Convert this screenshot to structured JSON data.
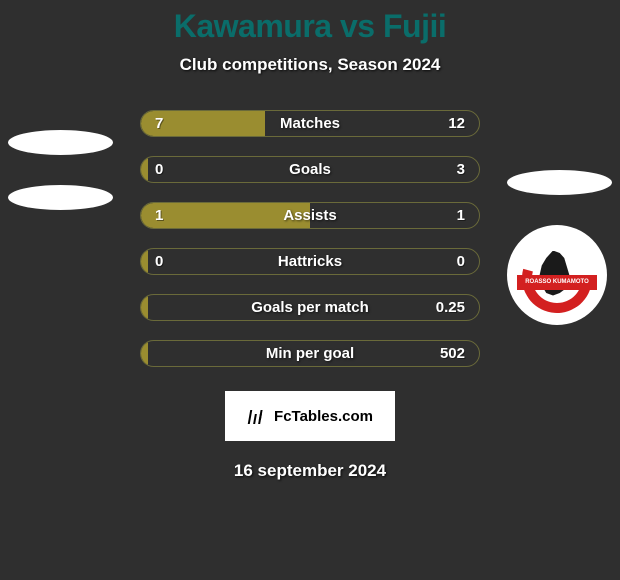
{
  "title": "Kawamura vs Fujii",
  "subtitle": "Club competitions, Season 2024",
  "date": "16 september 2024",
  "branding": "FcTables.com",
  "team_logo_text": "ROASSO KUMAMOTO",
  "colors": {
    "background": "#2f2f2f",
    "title_color": "#0a6d6a",
    "bar_fill": "#9a8d30",
    "bar_border": "#6a6a3a",
    "text": "#ffffff",
    "logo_red": "#d32020",
    "logo_black": "#1a1a1a"
  },
  "stats": [
    {
      "label": "Matches",
      "left_value": "7",
      "right_value": "12",
      "left_pct": 36.8
    },
    {
      "label": "Goals",
      "left_value": "0",
      "right_value": "3",
      "left_pct": 2
    },
    {
      "label": "Assists",
      "left_value": "1",
      "right_value": "1",
      "left_pct": 50
    },
    {
      "label": "Hattricks",
      "left_value": "0",
      "right_value": "0",
      "left_pct": 2
    },
    {
      "label": "Goals per match",
      "left_value": "",
      "right_value": "0.25",
      "left_pct": 2
    },
    {
      "label": "Min per goal",
      "left_value": "",
      "right_value": "502",
      "left_pct": 2
    }
  ]
}
